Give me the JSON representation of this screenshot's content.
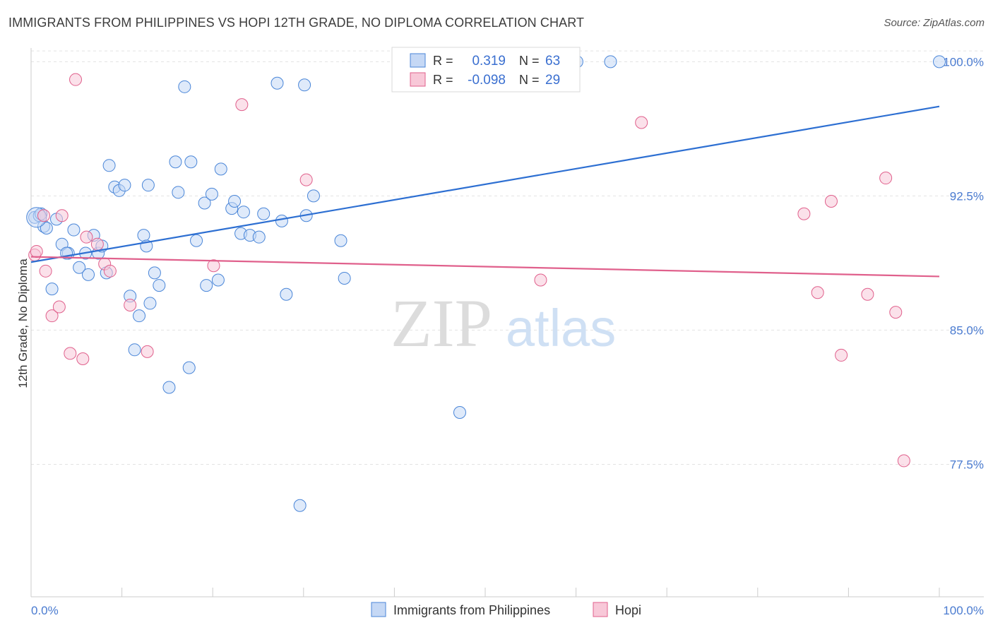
{
  "title": "IMMIGRANTS FROM PHILIPPINES VS HOPI 12TH GRADE, NO DIPLOMA CORRELATION CHART",
  "source": "Source: ZipAtlas.com",
  "watermark": {
    "zip": "ZIP",
    "atlas": "atlas"
  },
  "colors": {
    "blue": "#4a86d8",
    "blue_fill": "#c5d8f5",
    "pink": "#e0608c",
    "pink_fill": "#f8c8d8",
    "axis_text": "#4a7bd0"
  },
  "stats_legend": {
    "rows": [
      {
        "r_label": "R =",
        "r_value": "0.319",
        "n_label": "N =",
        "n_value": "63"
      },
      {
        "r_label": "R =",
        "r_value": "-0.098",
        "n_label": "N =",
        "n_value": "29"
      }
    ]
  },
  "bottom_legend": {
    "items": [
      "Immigrants from Philippines",
      "Hopi"
    ]
  },
  "chart_data": {
    "type": "scatter",
    "title": "IMMIGRANTS FROM PHILIPPINES VS HOPI 12TH GRADE, NO DIPLOMA CORRELATION CHART",
    "xlabel": "",
    "ylabel": "12th Grade, No Diploma",
    "xlim": [
      0,
      100
    ],
    "ylim": [
      70.1,
      101.0
    ],
    "x_ticks": [
      "0.0%",
      "100.0%"
    ],
    "y_ticks": [
      {
        "value": 100.0,
        "label": "100.0%"
      },
      {
        "value": 92.5,
        "label": "92.5%"
      },
      {
        "value": 85.0,
        "label": "85.0%"
      },
      {
        "value": 77.5,
        "label": "77.5%"
      }
    ],
    "grid": true,
    "legend_position": "top-center",
    "series": [
      {
        "name": "Immigrants from Philippines",
        "color": "#4a86d8",
        "trend": {
          "x": [
            0,
            100
          ],
          "y": [
            88.8,
            97.5
          ]
        },
        "points": [
          [
            0.4,
            91.3
          ],
          [
            0.9,
            91.4
          ],
          [
            1.4,
            90.8
          ],
          [
            1.7,
            90.7
          ],
          [
            2.3,
            87.3
          ],
          [
            2.8,
            91.2
          ],
          [
            3.4,
            89.8
          ],
          [
            4.1,
            89.3
          ],
          [
            4.7,
            90.6
          ],
          [
            5.3,
            88.5
          ],
          [
            6.0,
            89.3
          ],
          [
            6.3,
            88.1
          ],
          [
            6.9,
            90.3
          ],
          [
            7.4,
            89.3
          ],
          [
            7.8,
            89.7
          ],
          [
            8.3,
            88.2
          ],
          [
            8.6,
            94.2
          ],
          [
            9.2,
            93.0
          ],
          [
            9.7,
            92.8
          ],
          [
            10.3,
            93.1
          ],
          [
            10.9,
            86.9
          ],
          [
            11.4,
            83.9
          ],
          [
            11.9,
            85.8
          ],
          [
            12.4,
            90.3
          ],
          [
            12.7,
            89.7
          ],
          [
            12.9,
            93.1
          ],
          [
            13.1,
            86.5
          ],
          [
            13.6,
            88.2
          ],
          [
            14.1,
            87.5
          ],
          [
            15.2,
            81.8
          ],
          [
            15.9,
            94.4
          ],
          [
            16.2,
            92.7
          ],
          [
            16.9,
            98.6
          ],
          [
            17.4,
            82.9
          ],
          [
            17.6,
            94.4
          ],
          [
            18.2,
            90.0
          ],
          [
            19.1,
            92.1
          ],
          [
            19.3,
            87.5
          ],
          [
            19.9,
            92.6
          ],
          [
            20.6,
            87.8
          ],
          [
            20.9,
            94.0
          ],
          [
            22.1,
            91.8
          ],
          [
            22.4,
            92.2
          ],
          [
            23.1,
            90.4
          ],
          [
            23.4,
            91.6
          ],
          [
            24.1,
            90.3
          ],
          [
            25.1,
            90.2
          ],
          [
            25.6,
            91.5
          ],
          [
            27.1,
            98.8
          ],
          [
            27.6,
            91.1
          ],
          [
            28.1,
            87.0
          ],
          [
            29.6,
            75.2
          ],
          [
            30.1,
            98.7
          ],
          [
            30.3,
            91.4
          ],
          [
            31.1,
            92.5
          ],
          [
            34.1,
            90.0
          ],
          [
            34.5,
            87.9
          ],
          [
            47.2,
            80.4
          ],
          [
            60.1,
            100.0
          ],
          [
            63.8,
            100.0
          ],
          [
            100.0,
            100.0
          ],
          [
            3.9,
            89.3
          ],
          [
            1.1,
            91.5
          ]
        ]
      },
      {
        "name": "Hopi",
        "color": "#e0608c",
        "trend": {
          "x": [
            0,
            100
          ],
          "y": [
            89.1,
            88.0
          ]
        },
        "points": [
          [
            0.4,
            89.2
          ],
          [
            0.6,
            89.4
          ],
          [
            1.4,
            91.4
          ],
          [
            1.6,
            88.3
          ],
          [
            2.3,
            85.8
          ],
          [
            3.1,
            86.3
          ],
          [
            3.4,
            91.4
          ],
          [
            4.3,
            83.7
          ],
          [
            4.9,
            99.0
          ],
          [
            5.7,
            83.4
          ],
          [
            6.1,
            90.2
          ],
          [
            7.3,
            89.8
          ],
          [
            8.1,
            88.7
          ],
          [
            8.7,
            88.3
          ],
          [
            10.9,
            86.4
          ],
          [
            12.8,
            83.8
          ],
          [
            20.1,
            88.6
          ],
          [
            23.2,
            97.6
          ],
          [
            30.3,
            93.4
          ],
          [
            56.1,
            87.8
          ],
          [
            67.2,
            96.6
          ],
          [
            85.1,
            91.5
          ],
          [
            86.6,
            87.1
          ],
          [
            88.1,
            92.2
          ],
          [
            89.2,
            83.6
          ],
          [
            92.1,
            87.0
          ],
          [
            94.1,
            93.5
          ],
          [
            95.2,
            86.0
          ],
          [
            96.1,
            77.7
          ]
        ]
      }
    ]
  }
}
